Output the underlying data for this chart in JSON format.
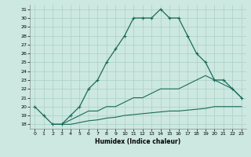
{
  "xlabel": "Humidex (Indice chaleur)",
  "xlim": [
    -0.5,
    23.5
  ],
  "ylim": [
    17.5,
    31.5
  ],
  "yticks": [
    18,
    19,
    20,
    21,
    22,
    23,
    24,
    25,
    26,
    27,
    28,
    29,
    30,
    31
  ],
  "xticks": [
    0,
    1,
    2,
    3,
    4,
    5,
    6,
    7,
    8,
    9,
    10,
    11,
    12,
    13,
    14,
    15,
    16,
    17,
    18,
    19,
    20,
    21,
    22,
    23
  ],
  "background_color": "#cce8e0",
  "grid_color": "#aacfc8",
  "line_color": "#1a6b5a",
  "line1_x": [
    0,
    1,
    2,
    3,
    4,
    5,
    6,
    7,
    8,
    9,
    10,
    11,
    12,
    13,
    14,
    15,
    16,
    17,
    18,
    19,
    20,
    21,
    22,
    23
  ],
  "line1_y": [
    20,
    19,
    18,
    18,
    19,
    20,
    22,
    23,
    25,
    26.5,
    28,
    30,
    30,
    30,
    31,
    30,
    30,
    28,
    26,
    25,
    23,
    23,
    22,
    21
  ],
  "line2_x": [
    2,
    3,
    4,
    5,
    6,
    7,
    8,
    9,
    10,
    11,
    12,
    13,
    14,
    15,
    16,
    17,
    18,
    19,
    20,
    21,
    22,
    23
  ],
  "line2_y": [
    18,
    18,
    18.5,
    19,
    19.5,
    19.5,
    20,
    20,
    20.5,
    21,
    21,
    21.5,
    22,
    22,
    22,
    22.5,
    23,
    23.5,
    23,
    22.5,
    22,
    21
  ],
  "line3_x": [
    2,
    3,
    4,
    5,
    6,
    7,
    8,
    9,
    10,
    11,
    12,
    13,
    14,
    15,
    16,
    17,
    18,
    19,
    20,
    21,
    22,
    23
  ],
  "line3_y": [
    18,
    18,
    18,
    18.2,
    18.4,
    18.5,
    18.7,
    18.8,
    19,
    19.1,
    19.2,
    19.3,
    19.4,
    19.5,
    19.5,
    19.6,
    19.7,
    19.8,
    20,
    20,
    20,
    20
  ]
}
